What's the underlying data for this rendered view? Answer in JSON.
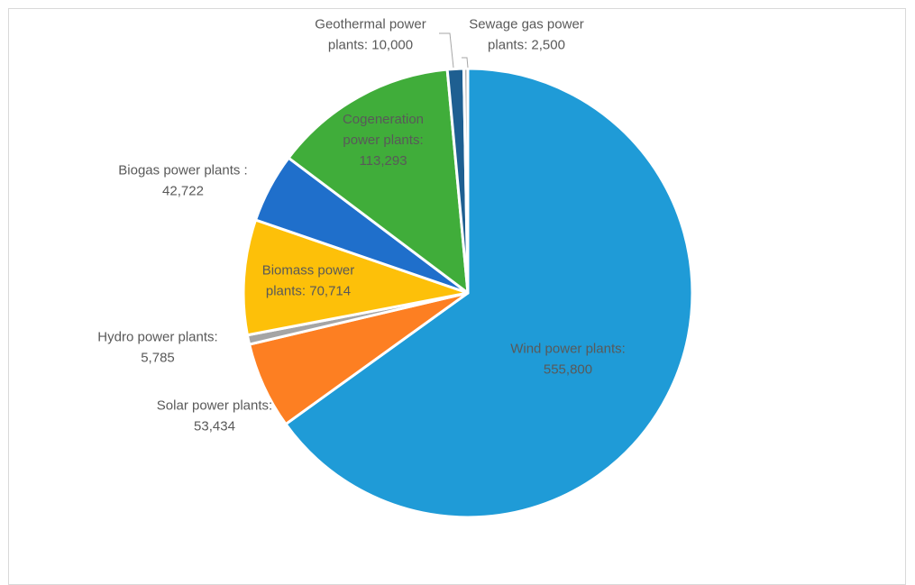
{
  "chart_data": {
    "type": "pie",
    "title": "",
    "start_angle_deg": 0,
    "direction": "clockwise",
    "slices": [
      {
        "label_lines": [
          "Wind power plants:",
          "555,800"
        ],
        "value": 555800,
        "color": "#1f9bd7",
        "label_color": "#595959",
        "label_inside": true
      },
      {
        "label_lines": [
          "Solar power plants:",
          "53,434"
        ],
        "value": 53434,
        "color": "#fd7f22",
        "label_color": "#595959",
        "label_inside": false
      },
      {
        "label_lines": [
          "Hydro power plants:",
          "5,785"
        ],
        "value": 5785,
        "color": "#a5a5a5",
        "label_color": "#595959",
        "label_inside": false
      },
      {
        "label_lines": [
          "Biomass power",
          "plants: 70,714"
        ],
        "value": 70714,
        "color": "#fdc009",
        "label_color": "#595959",
        "label_inside": true
      },
      {
        "label_lines": [
          "Biogas power plants :",
          "42,722"
        ],
        "value": 42722,
        "color": "#1f6fcb",
        "label_color": "#595959",
        "label_inside": false
      },
      {
        "label_lines": [
          "Cogeneration",
          "power plants:",
          "113,293"
        ],
        "value": 113293,
        "color": "#40ad3a",
        "label_color": "#595959",
        "label_inside": true
      },
      {
        "label_lines": [
          "Geothermal power",
          "plants: 10,000"
        ],
        "value": 10000,
        "color": "#1e5f91",
        "label_color": "#595959",
        "label_inside": false
      },
      {
        "label_lines": [
          "Sewage gas power",
          "plants: 2,500"
        ],
        "value": 2500,
        "color": "#b4b4b4",
        "label_color": "#595959",
        "label_inside": false
      }
    ],
    "legend": "none",
    "border_color": "#d9d9d9"
  }
}
